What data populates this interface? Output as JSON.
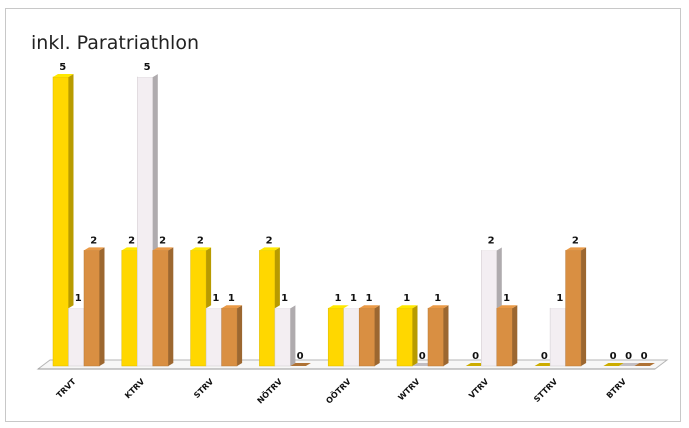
{
  "chart_data": {
    "type": "bar",
    "title": "inkl. Paratriathlon",
    "categories": [
      "TRVT",
      "KTRV",
      "STRV",
      "NÖTRV",
      "OÖTRV",
      "WTRV",
      "VTRV",
      "STTRV",
      "BTRV"
    ],
    "series": [
      {
        "color": "#ffd700",
        "values": [
          5,
          2,
          2,
          2,
          1,
          1,
          0,
          0,
          0
        ]
      },
      {
        "color": "#f3eef2",
        "values": [
          1,
          5,
          1,
          1,
          1,
          0,
          2,
          1,
          0
        ]
      },
      {
        "color": "#d98f42",
        "values": [
          2,
          2,
          1,
          0,
          1,
          1,
          1,
          2,
          0
        ]
      }
    ],
    "ylim": [
      0,
      5
    ],
    "grid": false,
    "legend": "none",
    "style": "3d-columns"
  }
}
